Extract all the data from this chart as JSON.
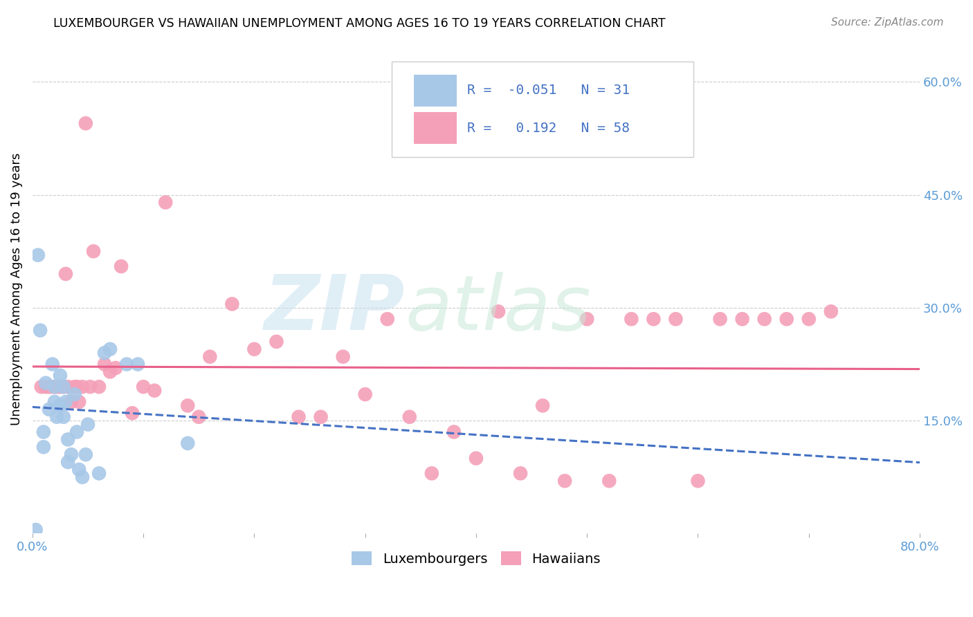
{
  "title": "LUXEMBOURGER VS HAWAIIAN UNEMPLOYMENT AMONG AGES 16 TO 19 YEARS CORRELATION CHART",
  "source": "Source: ZipAtlas.com",
  "ylabel": "Unemployment Among Ages 16 to 19 years",
  "xlim": [
    0.0,
    0.8
  ],
  "ylim": [
    0.0,
    0.65
  ],
  "xtick_values": [
    0.0,
    0.1,
    0.2,
    0.3,
    0.4,
    0.5,
    0.6,
    0.7,
    0.8
  ],
  "xticklabels": [
    "0.0%",
    "",
    "",
    "",
    "",
    "",
    "",
    "",
    "80.0%"
  ],
  "ytick_right_labels": [
    "60.0%",
    "45.0%",
    "30.0%",
    "15.0%"
  ],
  "ytick_right_values": [
    0.6,
    0.45,
    0.3,
    0.15
  ],
  "luxembourger_color": "#a8c8e8",
  "hawaiian_color": "#f4a0b8",
  "luxembourger_line_color": "#4472c4",
  "hawaiian_line_color": "#e8608a",
  "lux_R": -0.051,
  "lux_N": 31,
  "haw_R": 0.192,
  "haw_N": 58,
  "lux_x": [
    0.003,
    0.005,
    0.007,
    0.01,
    0.01,
    0.012,
    0.015,
    0.018,
    0.02,
    0.02,
    0.022,
    0.025,
    0.025,
    0.028,
    0.028,
    0.03,
    0.032,
    0.032,
    0.035,
    0.038,
    0.04,
    0.042,
    0.045,
    0.048,
    0.05,
    0.06,
    0.065,
    0.07,
    0.085,
    0.095,
    0.14
  ],
  "lux_y": [
    0.005,
    0.37,
    0.27,
    0.115,
    0.135,
    0.2,
    0.165,
    0.225,
    0.175,
    0.195,
    0.155,
    0.17,
    0.21,
    0.155,
    0.195,
    0.175,
    0.125,
    0.095,
    0.105,
    0.185,
    0.135,
    0.085,
    0.075,
    0.105,
    0.145,
    0.08,
    0.24,
    0.245,
    0.225,
    0.225,
    0.12
  ],
  "haw_x": [
    0.008,
    0.012,
    0.015,
    0.018,
    0.02,
    0.022,
    0.025,
    0.028,
    0.03,
    0.032,
    0.035,
    0.038,
    0.04,
    0.042,
    0.045,
    0.048,
    0.052,
    0.055,
    0.06,
    0.065,
    0.07,
    0.075,
    0.08,
    0.09,
    0.1,
    0.11,
    0.12,
    0.14,
    0.15,
    0.16,
    0.18,
    0.2,
    0.22,
    0.24,
    0.26,
    0.28,
    0.3,
    0.32,
    0.34,
    0.36,
    0.38,
    0.4,
    0.42,
    0.44,
    0.46,
    0.48,
    0.5,
    0.52,
    0.54,
    0.56,
    0.58,
    0.6,
    0.62,
    0.64,
    0.66,
    0.68,
    0.7,
    0.72
  ],
  "haw_y": [
    0.195,
    0.195,
    0.195,
    0.195,
    0.195,
    0.195,
    0.195,
    0.195,
    0.345,
    0.195,
    0.175,
    0.195,
    0.195,
    0.175,
    0.195,
    0.545,
    0.195,
    0.375,
    0.195,
    0.225,
    0.215,
    0.22,
    0.355,
    0.16,
    0.195,
    0.19,
    0.44,
    0.17,
    0.155,
    0.235,
    0.305,
    0.245,
    0.255,
    0.155,
    0.155,
    0.235,
    0.185,
    0.285,
    0.155,
    0.08,
    0.135,
    0.1,
    0.295,
    0.08,
    0.17,
    0.07,
    0.285,
    0.07,
    0.285,
    0.285,
    0.285,
    0.07,
    0.285,
    0.285,
    0.285,
    0.285,
    0.285,
    0.295
  ]
}
